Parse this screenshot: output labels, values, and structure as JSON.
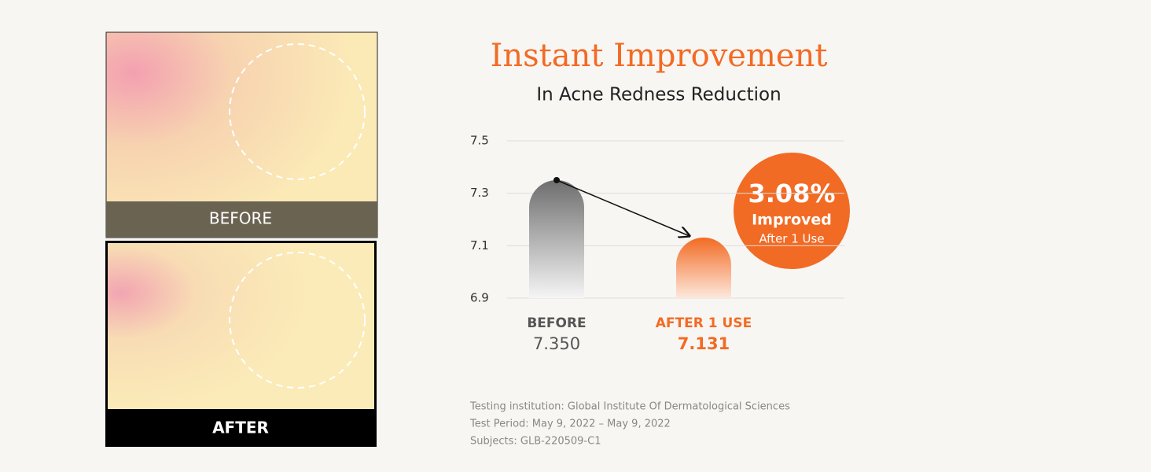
{
  "photos": [
    "BEFORE",
    "AFTER"
  ],
  "chart_data": {
    "type": "bar",
    "title": "Instant Improvement",
    "subtitle": "In  Acne Redness Reduction",
    "categories": [
      "BEFORE",
      "AFTER 1 USE"
    ],
    "values": [
      7.35,
      7.131
    ],
    "value_labels": [
      "7.350",
      "7.131"
    ],
    "colors": [
      "#555555",
      "#f26b24"
    ],
    "ylim": [
      6.9,
      7.5
    ],
    "yticks": [
      7.5,
      7.3,
      7.1,
      6.9
    ],
    "grid": true,
    "badge": {
      "value": 3.08,
      "label": "3.08%",
      "lines": [
        "Improved",
        "After 1 Use"
      ]
    }
  },
  "footnotes": [
    "Testing institution: Global Institute Of Dermatological Sciences",
    "Test Period: May 9, 2022 – May 9, 2022",
    "Subjects: GLB-220509-C1"
  ]
}
